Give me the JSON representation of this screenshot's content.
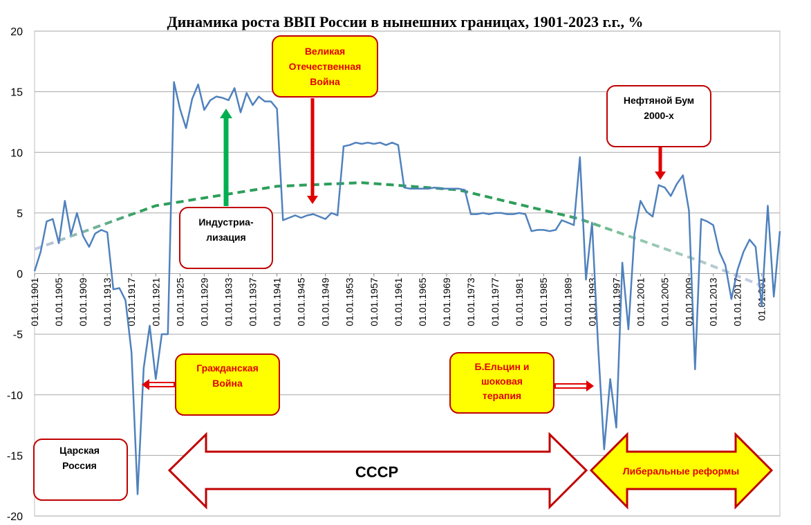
{
  "chart_data": {
    "type": "line",
    "title": "Динамика роста ВВП России в  нынешних границах, 1901-2023 г.г., %",
    "xlabel": "",
    "ylabel": "",
    "ylim": [
      -20,
      20
    ],
    "y_ticks": [
      20,
      15,
      10,
      5,
      0,
      -5,
      -10,
      -15,
      -20
    ],
    "x_tick_labels": [
      "01.01.1901",
      "01.01.1905",
      "01.01.1909",
      "01.01.1913",
      "01.01.1917",
      "01.01.1921",
      "01.01.1925",
      "01.01.1929",
      "01.01.1933",
      "01.01.1937",
      "01.01.1941",
      "01.01.1945",
      "01.01.1949",
      "01.01.1953",
      "01.01.1957",
      "01.01.1961",
      "01.01.1965",
      "01.01.1969",
      "01.01.1973",
      "01.01.1977",
      "01.01.1981",
      "01.01.1985",
      "01.01.1989",
      "01.01.1993",
      "01.01.1997",
      "01.01.2001",
      "01.01.2005",
      "01.01.2009",
      "01.01.2013",
      "01.01.2017",
      "01.01.201"
    ],
    "grid": true,
    "legend": "none",
    "colors": {
      "gdp": "#4F81BD",
      "trend": "#2E9E5B",
      "trend_fade": "#C8CCE8",
      "arrow_red": "#E00000",
      "arrow_green": "#00B050",
      "box_yellow": "#FFFF00",
      "box_border": "#C00000",
      "note_red": "#E00000"
    },
    "series": [
      {
        "values": [
          {
            "x": 1901,
            "y": 0.2
          },
          {
            "x": 1902,
            "y": 1.8
          },
          {
            "x": 1903,
            "y": 4.3
          },
          {
            "x": 1904,
            "y": 4.5
          },
          {
            "x": 1905,
            "y": 2.5
          },
          {
            "x": 1906,
            "y": 6.0
          },
          {
            "x": 1907,
            "y": 3.2
          },
          {
            "x": 1908,
            "y": 5.0
          },
          {
            "x": 1909,
            "y": 3.1
          },
          {
            "x": 1910,
            "y": 2.2
          },
          {
            "x": 1911,
            "y": 3.3
          },
          {
            "x": 1912,
            "y": 3.6
          },
          {
            "x": 1913,
            "y": 3.4
          },
          {
            "x": 1914,
            "y": -1.3
          },
          {
            "x": 1915,
            "y": -1.2
          },
          {
            "x": 1916,
            "y": -2.2
          },
          {
            "x": 1917,
            "y": -6.5
          },
          {
            "x": 1918,
            "y": -18.2
          },
          {
            "x": 1919,
            "y": -7.8
          },
          {
            "x": 1920,
            "y": -4.3
          },
          {
            "x": 1921,
            "y": -8.7
          },
          {
            "x": 1922,
            "y": -5.0
          },
          {
            "x": 1923,
            "y": -5.0
          },
          {
            "x": 1924,
            "y": 15.8
          },
          {
            "x": 1925,
            "y": 13.6
          },
          {
            "x": 1926,
            "y": 12.0
          },
          {
            "x": 1927,
            "y": 14.4
          },
          {
            "x": 1928,
            "y": 15.6
          },
          {
            "x": 1929,
            "y": 13.5
          },
          {
            "x": 1930,
            "y": 14.3
          },
          {
            "x": 1931,
            "y": 14.6
          },
          {
            "x": 1932,
            "y": 14.5
          },
          {
            "x": 1933,
            "y": 14.3
          },
          {
            "x": 1934,
            "y": 15.3
          },
          {
            "x": 1935,
            "y": 13.3
          },
          {
            "x": 1936,
            "y": 14.9
          },
          {
            "x": 1937,
            "y": 13.9
          },
          {
            "x": 1938,
            "y": 14.6
          },
          {
            "x": 1939,
            "y": 14.2
          },
          {
            "x": 1940,
            "y": 14.2
          },
          {
            "x": 1941,
            "y": 13.6
          },
          {
            "x": 1942,
            "y": 4.4
          },
          {
            "x": 1943,
            "y": 4.6
          },
          {
            "x": 1944,
            "y": 4.8
          },
          {
            "x": 1945,
            "y": 4.6
          },
          {
            "x": 1946,
            "y": 4.8
          },
          {
            "x": 1947,
            "y": 4.9
          },
          {
            "x": 1948,
            "y": 4.7
          },
          {
            "x": 1949,
            "y": 4.5
          },
          {
            "x": 1950,
            "y": 5.0
          },
          {
            "x": 1951,
            "y": 4.8
          },
          {
            "x": 1952,
            "y": 10.5
          },
          {
            "x": 1953,
            "y": 10.6
          },
          {
            "x": 1954,
            "y": 10.8
          },
          {
            "x": 1955,
            "y": 10.7
          },
          {
            "x": 1956,
            "y": 10.8
          },
          {
            "x": 1957,
            "y": 10.7
          },
          {
            "x": 1958,
            "y": 10.8
          },
          {
            "x": 1959,
            "y": 10.6
          },
          {
            "x": 1960,
            "y": 10.8
          },
          {
            "x": 1961,
            "y": 10.6
          },
          {
            "x": 1962,
            "y": 7.1
          },
          {
            "x": 1963,
            "y": 7.0
          },
          {
            "x": 1964,
            "y": 7.0
          },
          {
            "x": 1965,
            "y": 7.0
          },
          {
            "x": 1966,
            "y": 7.0
          },
          {
            "x": 1967,
            "y": 7.1
          },
          {
            "x": 1968,
            "y": 7.0
          },
          {
            "x": 1969,
            "y": 7.0
          },
          {
            "x": 1970,
            "y": 7.0
          },
          {
            "x": 1971,
            "y": 7.0
          },
          {
            "x": 1972,
            "y": 6.9
          },
          {
            "x": 1973,
            "y": 4.9
          },
          {
            "x": 1974,
            "y": 4.9
          },
          {
            "x": 1975,
            "y": 5.0
          },
          {
            "x": 1976,
            "y": 4.9
          },
          {
            "x": 1977,
            "y": 5.0
          },
          {
            "x": 1978,
            "y": 5.0
          },
          {
            "x": 1979,
            "y": 4.9
          },
          {
            "x": 1980,
            "y": 4.9
          },
          {
            "x": 1981,
            "y": 5.0
          },
          {
            "x": 1982,
            "y": 4.9
          },
          {
            "x": 1983,
            "y": 3.5
          },
          {
            "x": 1984,
            "y": 3.6
          },
          {
            "x": 1985,
            "y": 3.6
          },
          {
            "x": 1986,
            "y": 3.5
          },
          {
            "x": 1987,
            "y": 3.6
          },
          {
            "x": 1988,
            "y": 4.4
          },
          {
            "x": 1989,
            "y": 4.2
          },
          {
            "x": 1990,
            "y": 4.0
          },
          {
            "x": 1991,
            "y": 9.6
          },
          {
            "x": 1992,
            "y": -0.5
          },
          {
            "x": 1993,
            "y": 4.2
          },
          {
            "x": 1994,
            "y": -6.0
          },
          {
            "x": 1995,
            "y": -14.5
          },
          {
            "x": 1996,
            "y": -8.7
          },
          {
            "x": 1997,
            "y": -12.7
          },
          {
            "x": 1998,
            "y": 0.9
          },
          {
            "x": 1999,
            "y": -4.6
          },
          {
            "x": 2000,
            "y": 3.3
          },
          {
            "x": 2001,
            "y": 6.0
          },
          {
            "x": 2002,
            "y": 5.1
          },
          {
            "x": 2003,
            "y": 4.7
          },
          {
            "x": 2004,
            "y": 7.3
          },
          {
            "x": 2005,
            "y": 7.1
          },
          {
            "x": 2006,
            "y": 6.4
          },
          {
            "x": 2007,
            "y": 7.4
          },
          {
            "x": 2008,
            "y": 8.1
          },
          {
            "x": 2009,
            "y": 5.2
          },
          {
            "x": 2010,
            "y": -7.9
          },
          {
            "x": 2011,
            "y": 4.5
          },
          {
            "x": 2012,
            "y": 4.3
          },
          {
            "x": 2013,
            "y": 4.0
          },
          {
            "x": 2014,
            "y": 1.8
          },
          {
            "x": 2015,
            "y": 0.7
          },
          {
            "x": 2016,
            "y": -2.1
          },
          {
            "x": 2017,
            "y": 0.3
          },
          {
            "x": 2018,
            "y": 1.8
          },
          {
            "x": 2019,
            "y": 2.8
          },
          {
            "x": 2020,
            "y": 2.2
          },
          {
            "x": 2021,
            "y": -2.7
          },
          {
            "x": 2022,
            "y": 5.6
          },
          {
            "x": 2023,
            "y": -1.9
          },
          {
            "x": 2024,
            "y": 3.5
          }
        ]
      }
    ],
    "trendline": {
      "type": "polynomial-2",
      "points": [
        {
          "x": 1901,
          "y": 2.0
        },
        {
          "x": 1921,
          "y": 5.6
        },
        {
          "x": 1941,
          "y": 7.2
        },
        {
          "x": 1955,
          "y": 7.5
        },
        {
          "x": 1971,
          "y": 6.9
        },
        {
          "x": 1991,
          "y": 4.5
        },
        {
          "x": 2011,
          "y": 1.0
        },
        {
          "x": 2021,
          "y": -1.0
        }
      ]
    }
  },
  "annotations": {
    "great_war": "Великая\nОтечественная\nВойна",
    "oil_boom": "Нефтяной Бум\n2000-х",
    "industrialization": "Индустриа-\nлизация",
    "civil_war": "Гражданская\nВойна",
    "yeltsin": "Б.Ельцин и\nшоковая\nтерапия",
    "tsarist": "Царская\nРоссия",
    "ussr": "СССР",
    "liberal": "Либеральные реформы"
  }
}
